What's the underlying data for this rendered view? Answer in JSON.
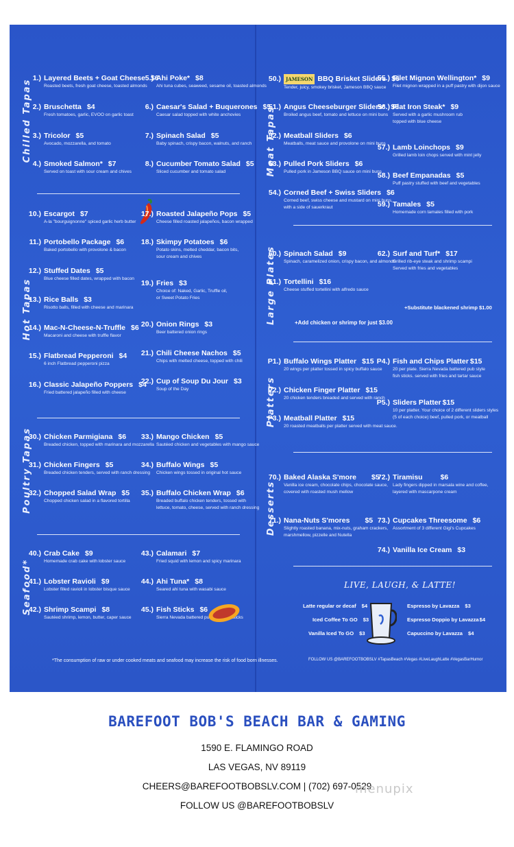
{
  "sections": {
    "chilled": "Chilled Tapas",
    "hot": "Hot Tapas",
    "poultry": "Poultry Tapas",
    "seafood": "Seafood*",
    "meat": "Meat Tapas",
    "large": "Large Plates",
    "platters": "Platters",
    "desserts": "Desserts"
  },
  "items": {
    "i1": {
      "num": "1.)",
      "name": "Layered Beets + Goat Cheese",
      "price": "$6",
      "desc": "Roasted beets, fresh goat cheese, toasted almonds"
    },
    "i2": {
      "num": "2.)",
      "name": "Bruschetta",
      "price": "$4",
      "desc": "Fresh tomatoes, garlic, EVOO on garlic toast"
    },
    "i3": {
      "num": "3.)",
      "name": "Tricolor",
      "price": "$5",
      "desc": "Avocado, mozzarella, and tomato"
    },
    "i4": {
      "num": "4.)",
      "name": "Smoked Salmon*",
      "price": "$7",
      "desc": "Served on toast with sour cream and chives"
    },
    "i5": {
      "num": "5.)",
      "name": "Ahi Poke*",
      "price": "$8",
      "desc": "Ahi tuna cubes, seaweed, sesame oil, toasted almonds"
    },
    "i6": {
      "num": "6.)",
      "name": "Caesar's Salad + Buquerones",
      "price": "$5",
      "desc": "Caesar salad topped with white anchovies"
    },
    "i7": {
      "num": "7.)",
      "name": "Spinach Salad",
      "price": "$5",
      "desc": "Baby spinach, crispy bacon, walnuts, and ranch"
    },
    "i8": {
      "num": "8.)",
      "name": "Cucumber Tomato Salad",
      "price": "$5",
      "desc": "Sliced cucumber and tomato salad"
    },
    "i10": {
      "num": "10.)",
      "name": "Escargot",
      "price": "$7",
      "desc": "A-la \"bourguignonne\" spiced garlic herb butter"
    },
    "i11": {
      "num": "11.)",
      "name": "Portobello Package",
      "price": "$6",
      "desc": "Baked portobello with provolone & bacon"
    },
    "i12": {
      "num": "12.)",
      "name": "Stuffed Dates",
      "price": "$5",
      "desc": "Blue cheese filled dates, wrapped with bacon"
    },
    "i13": {
      "num": "13.)",
      "name": "Rice Balls",
      "price": "$3",
      "desc": "Risotto balls, filled with cheese and marinara"
    },
    "i14": {
      "num": "14.)",
      "name": "Mac-N-Cheese-N-Truffle",
      "price": "$6",
      "desc": "Macaroni and cheese with truffle flavor"
    },
    "i15": {
      "num": "15.)",
      "name": "Flatbread Pepperoni",
      "price": "$4",
      "desc": "6 inch Flatbread pepperoni pizza"
    },
    "i16": {
      "num": "16.)",
      "name": "Classic Jalapeño Poppers",
      "price": "$4",
      "desc": "Fried battered jalapeño filled with cheese"
    },
    "i17": {
      "num": "17.)",
      "name": "Roasted Jalapeño Pops",
      "price": "$5",
      "desc": "Cheese filled roasted jalapeños, bacon wrapped"
    },
    "i18": {
      "num": "18.)",
      "name": "Skimpy Potatoes",
      "price": "$6",
      "desc": "Potato skins, melted cheddar, bacon bits,\nsour cream and chives"
    },
    "i19": {
      "num": "19.)",
      "name": "Fries",
      "price": "$3",
      "desc": "Choice of: Naked, Garlic, Truffle oil,\nor Sweet Potato Fries"
    },
    "i20": {
      "num": "20.)",
      "name": "Onion Rings",
      "price": "$3",
      "desc": "Beer battered onion rings"
    },
    "i21": {
      "num": "21.)",
      "name": "Chili Cheese Nachos",
      "price": "$5",
      "desc": "Chips with melted cheese, topped with chili"
    },
    "i22": {
      "num": "22.)",
      "name": "Cup of Soup Du Jour",
      "price": "$3",
      "desc": "Soup of the Day"
    },
    "i30": {
      "num": "30.)",
      "name": "Chicken Parmigiana",
      "price": "$6",
      "desc": "Breaded chicken, topped with marinara and mozzarella"
    },
    "i31": {
      "num": "31.)",
      "name": "Chicken Fingers",
      "price": "$5",
      "desc": "Breaded chicken tenders, served with ranch dressing"
    },
    "i32": {
      "num": "32.)",
      "name": "Chopped Salad Wrap",
      "price": "$5",
      "desc": "Chopped chicken salad in a flavored tortilla"
    },
    "i33": {
      "num": "33.)",
      "name": "Mango Chicken",
      "price": "$5",
      "desc": "Sautéed chicken and vegetables with mango sauce"
    },
    "i34": {
      "num": "34.)",
      "name": "Buffalo Wings",
      "price": "$5",
      "desc": "Chicken wings tossed in original hot sauce"
    },
    "i35": {
      "num": "35.)",
      "name": "Buffalo Chicken Wrap",
      "price": "$6",
      "desc": "Breaded buffalo chicken tenders, tossed with\nlettuce, tomato, cheese, served with ranch dressing"
    },
    "i40": {
      "num": "40.)",
      "name": "Crab Cake",
      "price": "$9",
      "desc": "Homemade crab cake with lobster sauce"
    },
    "i41": {
      "num": "41.)",
      "name": "Lobster Ravioli",
      "price": "$9",
      "desc": "Lobster filled ravioli in lobster bisque sauce"
    },
    "i42": {
      "num": "42.)",
      "name": "Shrimp Scampi",
      "price": "$8",
      "desc": "Sautéed shrimp, lemon, butter, caper sauce"
    },
    "i43": {
      "num": "43.)",
      "name": "Calamari",
      "price": "$7",
      "desc": "Fried squid with lemon and spicy marinara"
    },
    "i44": {
      "num": "44.)",
      "name": "Ahi Tuna*",
      "price": "$8",
      "desc": "Seared ahi tuna with wasabi sauce"
    },
    "i45": {
      "num": "45.)",
      "name": "Fish Sticks",
      "price": "$6",
      "desc": "Sierra Nevada battered pub style fish sticks"
    },
    "i50": {
      "num": "50.)",
      "name": "BBQ Brisket Sliders",
      "price": "$6",
      "desc": "Tender, juicy, smokey brisket, Jameson BBQ sauce",
      "brand": "JAMESON"
    },
    "i51": {
      "num": "51.)",
      "name": "Angus Cheeseburger Sliders*",
      "price": "$6",
      "desc": "Broiled angus beef, tomato and lettuce on mini buns"
    },
    "i52": {
      "num": "52.)",
      "name": "Meatball Sliders",
      "price": "$6",
      "desc": "Meatballs, meat sauce and provolone on mini buns"
    },
    "i53": {
      "num": "53.)",
      "name": "Pulled Pork Sliders",
      "price": "$6",
      "desc": "Pulled pork in Jameson BBQ sauce on mini buns"
    },
    "i54": {
      "num": "54.)",
      "name": "Corned Beef + Swiss Sliders",
      "price": "$6",
      "desc": "Corned beef, swiss cheese and mustard on mini buns,\nwith a side of sauerkraut"
    },
    "i55": {
      "num": "55.)",
      "name": "Filet Mignon Wellington*",
      "price": "$9",
      "desc": "Filet mignon wrapped in a puff pastry with dijon sauce"
    },
    "i56": {
      "num": "56.)",
      "name": "Flat Iron Steak*",
      "price": "$9",
      "desc": "Served with a garlic mushroom rub\ntopped with blue cheese"
    },
    "i57": {
      "num": "57.)",
      "name": "Lamb Loinchops",
      "price": "$9",
      "desc": "Grilled lamb loin chops served with mint jelly"
    },
    "i58": {
      "num": "58.)",
      "name": "Beef Empanadas",
      "price": "$5",
      "desc": "Puff pastry stuffed with beef and vegetables"
    },
    "i59": {
      "num": "59.)",
      "name": "Tamales",
      "price": "$5",
      "desc": "Homemade corn tamales filled with pork"
    },
    "i60": {
      "num": "60.)",
      "name": "Spinach Salad",
      "price": "$9",
      "desc": "Spinach, caramelized onion, crispy bacon, and almonds"
    },
    "i61": {
      "num": "61.)",
      "name": "Tortellini",
      "price": "$16",
      "desc": "Cheese stuffed tortellini with alfredo sauce"
    },
    "i62": {
      "num": "62.)",
      "name": "Surf and Turf*",
      "price": "$17",
      "desc": "Grilled rib-eye steak and shrimp scampi\nServed with fries and vegetables"
    },
    "p1": {
      "num": "P1.)",
      "name": "Buffalo Wings Platter",
      "price": "$15",
      "desc": "20 wings per platter tossed in spicy buffalo sauce"
    },
    "p2": {
      "num": "P2.)",
      "name": "Chicken Finger Platter",
      "price": "$15",
      "desc": "20 chicken tenders breaded and served with ranch"
    },
    "p3": {
      "num": "P3.)",
      "name": "Meatball Platter",
      "price": "$15",
      "desc": "20 roasted meatballs per platter served with meat sauce."
    },
    "p4": {
      "num": "P4.)",
      "name": "Fish and Chips Platter",
      "price": "$15",
      "desc": "20 per plate. Sierra Nevada battered pub style\nfish sticks. served with fries and tartar sauce"
    },
    "p5": {
      "num": "P5.)",
      "name": "Sliders Platter",
      "price": "$15",
      "desc": "10 per platter. Your choice of 2 different sliders styles\n(5 of each choice) beef, pulled pork, or meatball"
    },
    "i70": {
      "num": "70.)",
      "name": "Baked Alaska S'more",
      "price": "$5",
      "desc": "Vanilla ice cream, chocolate chips, chocolate sauce,\ncovered with roasted mush mellow"
    },
    "i71": {
      "num": "71.)",
      "name": "Nana-Nuts S'mores",
      "price": "$5",
      "desc": "Slightly roasted banana, mix-nuts, graham crackers,\nmarshmellow, pizzelle and Nutella"
    },
    "i72": {
      "num": "72.)",
      "name": "Tiramisu",
      "price": "$6",
      "desc": "Lady fingers dipped in marsala wine and coffee,\nlayered with mascarpone cream"
    },
    "i73": {
      "num": "73.)",
      "name": "Cupcakes Threesome",
      "price": "$6",
      "desc": "Assortment of 3 different Gigi's Cupcakes"
    },
    "i74": {
      "num": "74.)",
      "name": "Vanilla Ice Cream",
      "price": "$3",
      "desc": ""
    }
  },
  "notes": {
    "add_chicken": "+Add chicken or shrimp for just $3.00",
    "sub_shrimp": "+Substitute blackened shrimp $1.00",
    "raw_warning": "*The consumption of raw or under cooked meats and seafood may increase the risk of food born illnesses."
  },
  "latte": {
    "title": "LIVE, LAUGH, & LATTE!",
    "left": [
      {
        "name": "Latte regular or decaf",
        "price": "$4"
      },
      {
        "name": "Iced Coffee To GO",
        "price": "$3"
      },
      {
        "name": "Vanilla Iced To GO",
        "price": "$3"
      }
    ],
    "right": [
      {
        "name": "Espresso by Lavazza",
        "price": "$3"
      },
      {
        "name": "Espresso Doppio by Lavazza",
        "price": "$4"
      },
      {
        "name": "Capuccino by Lavazza",
        "price": "$4"
      }
    ],
    "social": "FOLLOW US @BAREFOOTBOBSLV    #TapasBeach    #Vegas    #LiveLaughLatte    #VegasBarHumor"
  },
  "footer": {
    "title": "BAREFOOT BOB'S BEACH BAR & GAMING",
    "address1": "1590 E. FLAMINGO ROAD",
    "address2": "LAS VEGAS, NV 89119",
    "contact": "CHEERS@BAREFOOTBOBSLV.COM | (702) 697-0529",
    "follow": "FOLLOW US @BAREFOOTBOBSLV"
  },
  "watermark": "menupix",
  "colors": {
    "panel": "#2f5fd2",
    "title": "#2a4fbf",
    "text": "#ffffff"
  }
}
